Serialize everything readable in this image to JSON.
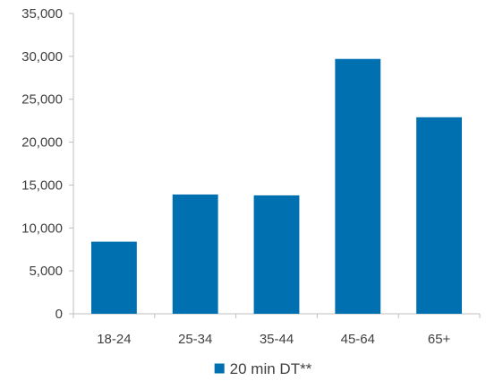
{
  "chart_data": {
    "type": "bar",
    "categories": [
      "18-24",
      "25-34",
      "35-44",
      "45-64",
      "65+"
    ],
    "series": [
      {
        "name": "20 min DT**",
        "values": [
          8400,
          13900,
          13800,
          29700,
          22900
        ],
        "color": "#0070b0"
      }
    ],
    "ylim": [
      0,
      35000
    ],
    "yticks": [
      0,
      5000,
      10000,
      15000,
      20000,
      25000,
      30000,
      35000
    ],
    "ytick_labels": [
      "0",
      "5,000",
      "10,000",
      "15,000",
      "20,000",
      "25,000",
      "30,000",
      "35,000"
    ],
    "title": "",
    "xlabel": "",
    "ylabel": "",
    "grid": false,
    "legend_position": "bottom-center",
    "axis_color": "#bfbfbf"
  }
}
